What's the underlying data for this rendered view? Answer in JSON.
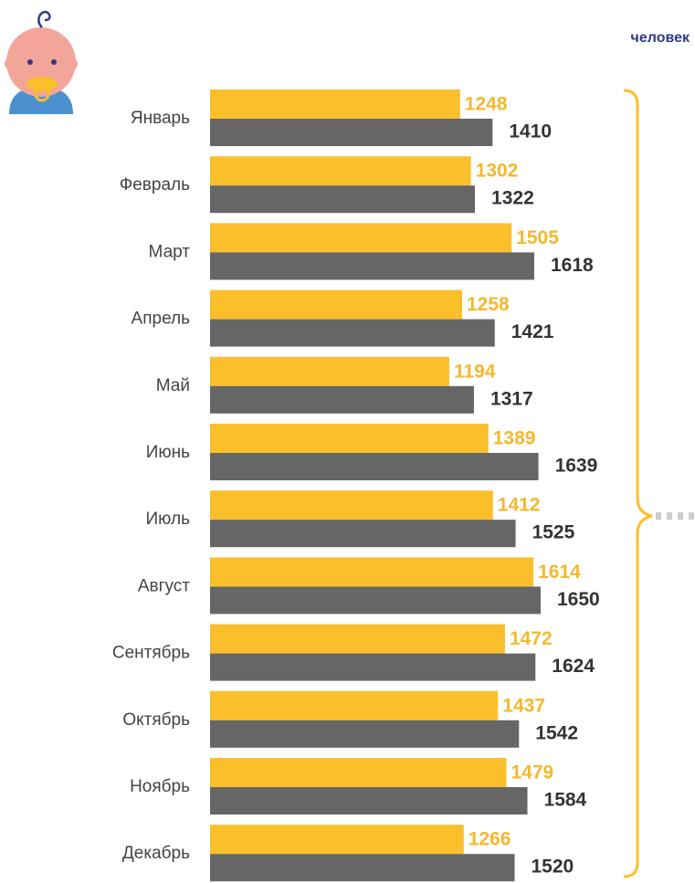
{
  "chart_data": {
    "type": "bar",
    "orientation": "horizontal",
    "title": "человек",
    "categories": [
      "Январь",
      "Февраль",
      "Март",
      "Апрель",
      "Май",
      "Июнь",
      "Июль",
      "Август",
      "Сентябрь",
      "Октябрь",
      "Ноябрь",
      "Декабрь"
    ],
    "series": [
      {
        "color": "#fbbf2b",
        "values": [
          1248,
          1302,
          1505,
          1258,
          1194,
          1389,
          1412,
          1614,
          1472,
          1437,
          1479,
          1266
        ]
      },
      {
        "color": "#666666",
        "values": [
          1410,
          1322,
          1618,
          1421,
          1317,
          1639,
          1525,
          1650,
          1624,
          1542,
          1584,
          1520
        ]
      }
    ]
  }
}
